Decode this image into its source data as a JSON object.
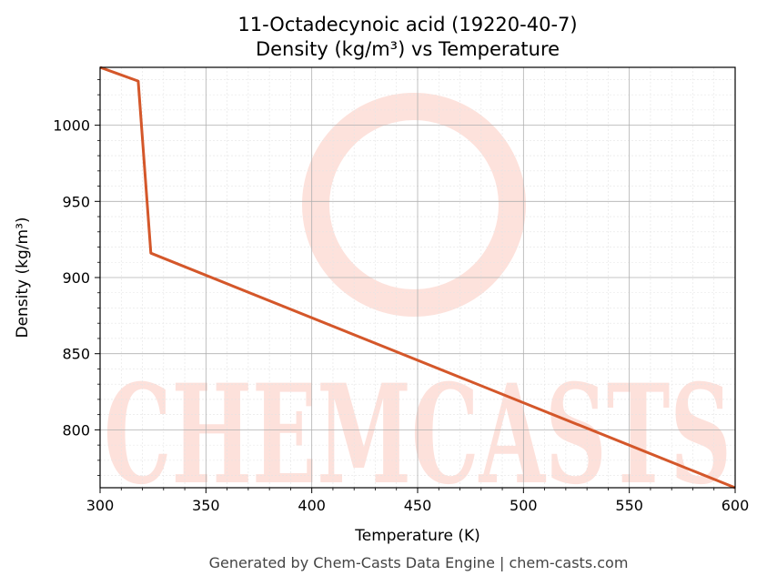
{
  "chart_data": {
    "type": "line",
    "title_line1": "11-Octadecynoic acid (19220-40-7)",
    "title_line2": "Density (kg/m³) vs Temperature",
    "xlabel": "Temperature (K)",
    "ylabel": "Density (kg/m³)",
    "xlim": [
      300,
      600
    ],
    "ylim": [
      762,
      1038
    ],
    "x_ticks": [
      300,
      350,
      400,
      450,
      500,
      550,
      600
    ],
    "y_ticks": [
      800,
      850,
      900,
      950,
      1000
    ],
    "grid": true,
    "series": [
      {
        "color": "#d4572a",
        "points": [
          [
            300,
            1038
          ],
          [
            318,
            1029
          ],
          [
            324,
            916
          ],
          [
            600,
            762
          ]
        ]
      }
    ]
  },
  "watermark": {
    "text": "CHEMCASTS",
    "color": "#fde0da"
  },
  "footer": "Generated by Chem-Casts Data Engine | chem-casts.com"
}
